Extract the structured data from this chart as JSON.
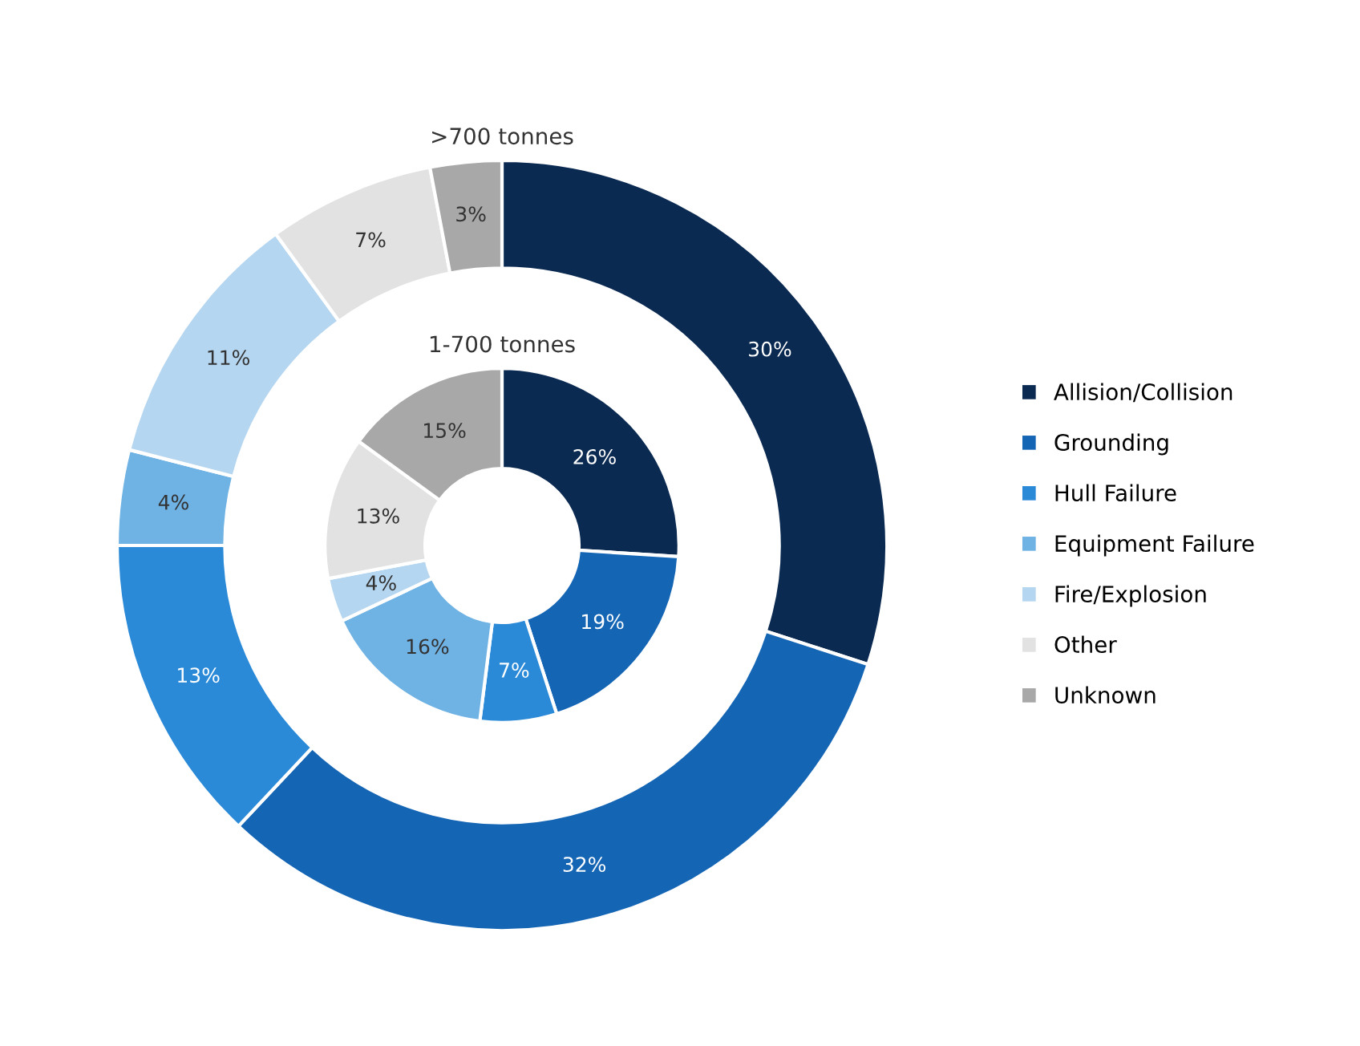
{
  "chart_data": {
    "type": "donut",
    "categories": [
      "Allision/Collision",
      "Grounding",
      "Hull Failure",
      "Equipment Failure",
      "Fire/Explosion",
      "Other",
      "Unknown"
    ],
    "colors": [
      "#0b2a52",
      "#1565b5",
      "#2a8ad8",
      "#6fb2e4",
      "#b5d6f0",
      "#e2e2e2",
      "#a8a8a8"
    ],
    "legend": "right",
    "series": [
      {
        "name": ">700 tonnes",
        "values": [
          30,
          32,
          13,
          4,
          11,
          7,
          3
        ],
        "value_labels": [
          "30%",
          "32%",
          "13%",
          "4%",
          "11%",
          "7%",
          "3%"
        ]
      },
      {
        "name": "1-700 tonnes",
        "values": [
          26,
          19,
          7,
          16,
          4,
          13,
          15
        ],
        "value_labels": [
          "26%",
          "19%",
          "7%",
          "16%",
          "4%",
          "13%",
          "15%"
        ]
      }
    ]
  }
}
